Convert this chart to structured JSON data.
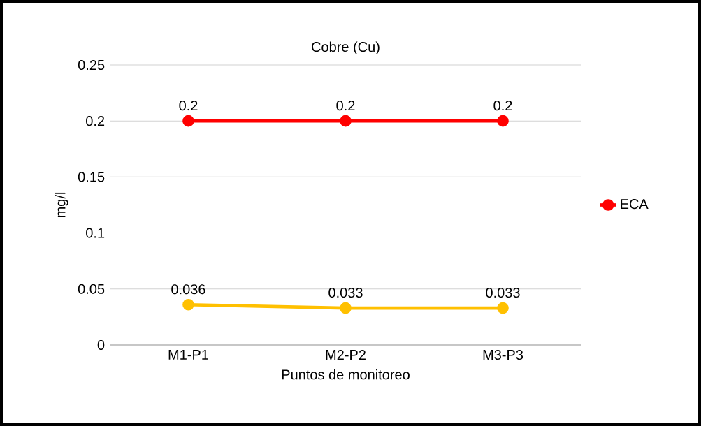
{
  "chart_data": {
    "type": "line",
    "title": "Cobre (Cu)",
    "xlabel": "Puntos de monitoreo",
    "ylabel": "mg/l",
    "categories": [
      "M1-P1",
      "M2-P2",
      "M3-P3"
    ],
    "series": [
      {
        "name": "ECA",
        "color": "#ff0000",
        "values": [
          0.2,
          0.2,
          0.2
        ]
      },
      {
        "color": "#ffc000",
        "values": [
          0.036,
          0.033,
          0.033
        ]
      }
    ],
    "ylim": [
      0,
      0.25
    ],
    "yticks": [
      0,
      0.05,
      0.1,
      0.15,
      0.2,
      0.25
    ],
    "grid": "y",
    "legend": "right",
    "marker": "circle",
    "data_labels": true
  }
}
